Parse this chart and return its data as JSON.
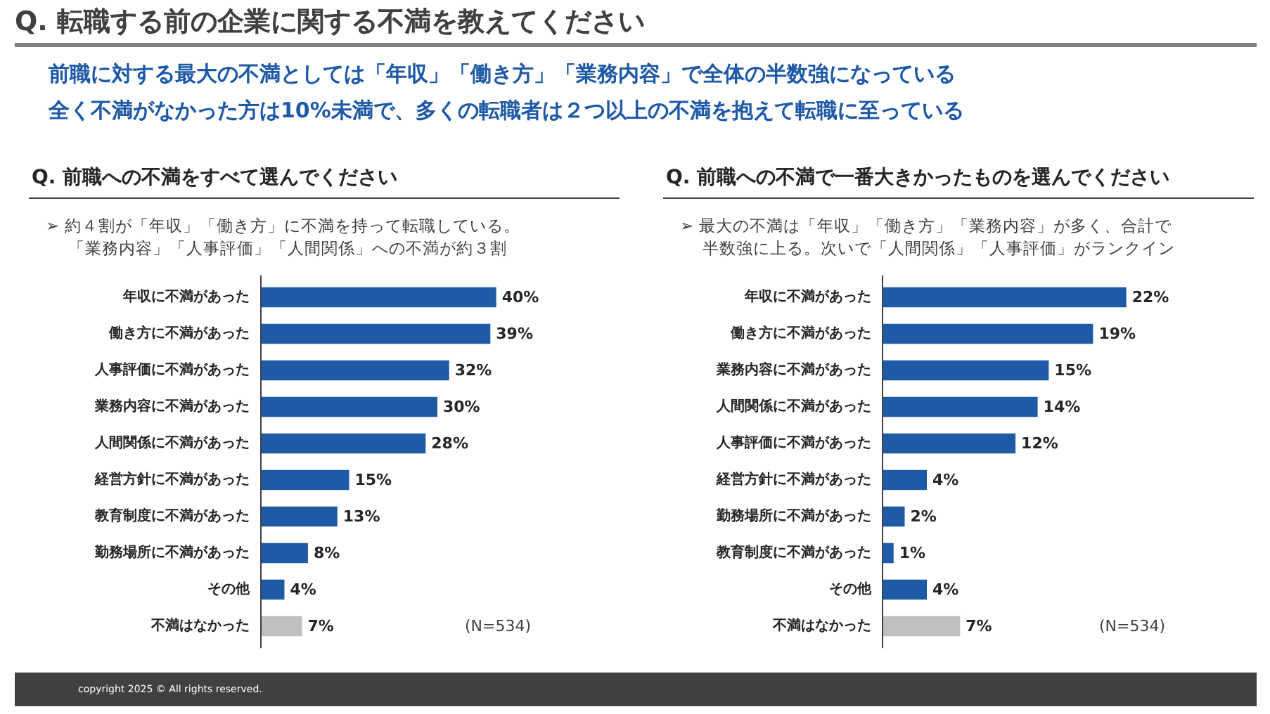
{
  "chart_data": [
    {
      "type": "other",
      "title": "Q. 転職する前の企業に関する不満を教えてください",
      "subtitle": "前職に対する最大の不満としては「年収」「働き方」「業務内容」で全体の半数強になっている",
      "annotations": [
        "全く不満がなかった方は10%未満で、多くの転職者は２つ以上の不満を抱えて転職に至っている",
        "copyright 2025 © All rights reserved."
      ]
    },
    {
      "type": "bar",
      "orientation": "horizontal",
      "title": "Q. 前職への不満をすべて選んでください",
      "subtitle": "➢ 約４割が「年収」「働き方」に不満を持って転職している。「業務内容」「人事評価」「人間関係」への不満が約３割",
      "categories": [
        "年収に不満があった",
        "働き方に不満があった",
        "人事評価に不満があった",
        "業務内容に不満があった",
        "人間関係に不満があった",
        "経営方針に不満があった",
        "教育制度に不満があった",
        "勤務場所に不満があった",
        "その他",
        "不満はなかった"
      ],
      "values": [
        40,
        39,
        32,
        30,
        28,
        15,
        13,
        8,
        4,
        7
      ],
      "colors": [
        "#1f5aa6",
        "#1f5aa6",
        "#1f5aa6",
        "#1f5aa6",
        "#1f5aa6",
        "#1f5aa6",
        "#1f5aa6",
        "#1f5aa6",
        "#1f5aa6",
        "#bfbfbf"
      ],
      "value_labels": [
        "40%",
        "39%",
        "32%",
        "30%",
        "28%",
        "15%",
        "13%",
        "8%",
        "4%",
        "7%"
      ],
      "annotations": [
        "(N=534)"
      ]
    },
    {
      "type": "bar",
      "orientation": "horizontal",
      "title": "Q. 前職への不満で一番大きかったものを選んでください",
      "subtitle": "➢ 最大の不満は「年収」「働き方」「業務内容」が多く、合計で半数強に上る。次いで「人間関係」「人事評価」がランクイン",
      "categories": [
        "年収に不満があった",
        "働き方に不満があった",
        "業務内容に不満があった",
        "人間関係に不満があった",
        "人事評価に不満があった",
        "経営方針に不満があった",
        "勤務場所に不満があった",
        "教育制度に不満があった",
        "その他",
        "不満はなかった"
      ],
      "values": [
        22,
        19,
        15,
        14,
        12,
        4,
        2,
        1,
        4,
        7
      ],
      "colors": [
        "#1f5aa6",
        "#1f5aa6",
        "#1f5aa6",
        "#1f5aa6",
        "#1f5aa6",
        "#1f5aa6",
        "#1f5aa6",
        "#1f5aa6",
        "#1f5aa6",
        "#bfbfbf"
      ],
      "value_labels": [
        "22%",
        "19%",
        "15%",
        "14%",
        "12%",
        "4%",
        "2%",
        "1%",
        "4%",
        "7%"
      ],
      "annotations": [
        "(N=534)"
      ]
    }
  ]
}
